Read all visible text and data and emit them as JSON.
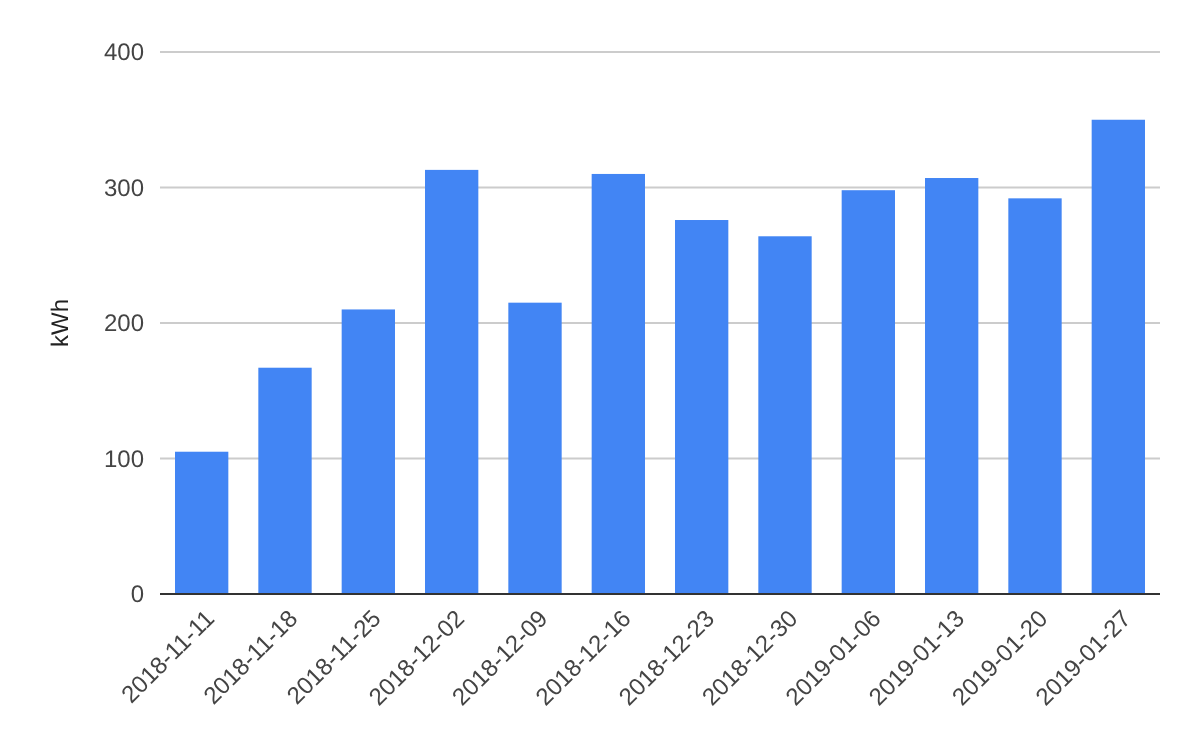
{
  "chart_data": {
    "type": "bar",
    "ylabel": "kWh",
    "categories": [
      "2018-11-11",
      "2018-11-18",
      "2018-11-25",
      "2018-12-02",
      "2018-12-09",
      "2018-12-16",
      "2018-12-23",
      "2018-12-30",
      "2019-01-06",
      "2019-01-13",
      "2019-01-20",
      "2019-01-27"
    ],
    "values": [
      105,
      167,
      210,
      313,
      215,
      310,
      276,
      264,
      298,
      307,
      292,
      350
    ],
    "color": "#4285f4",
    "ylim": [
      0,
      400
    ],
    "yticks": [
      0,
      100,
      200,
      300,
      400
    ],
    "grid": "y"
  }
}
